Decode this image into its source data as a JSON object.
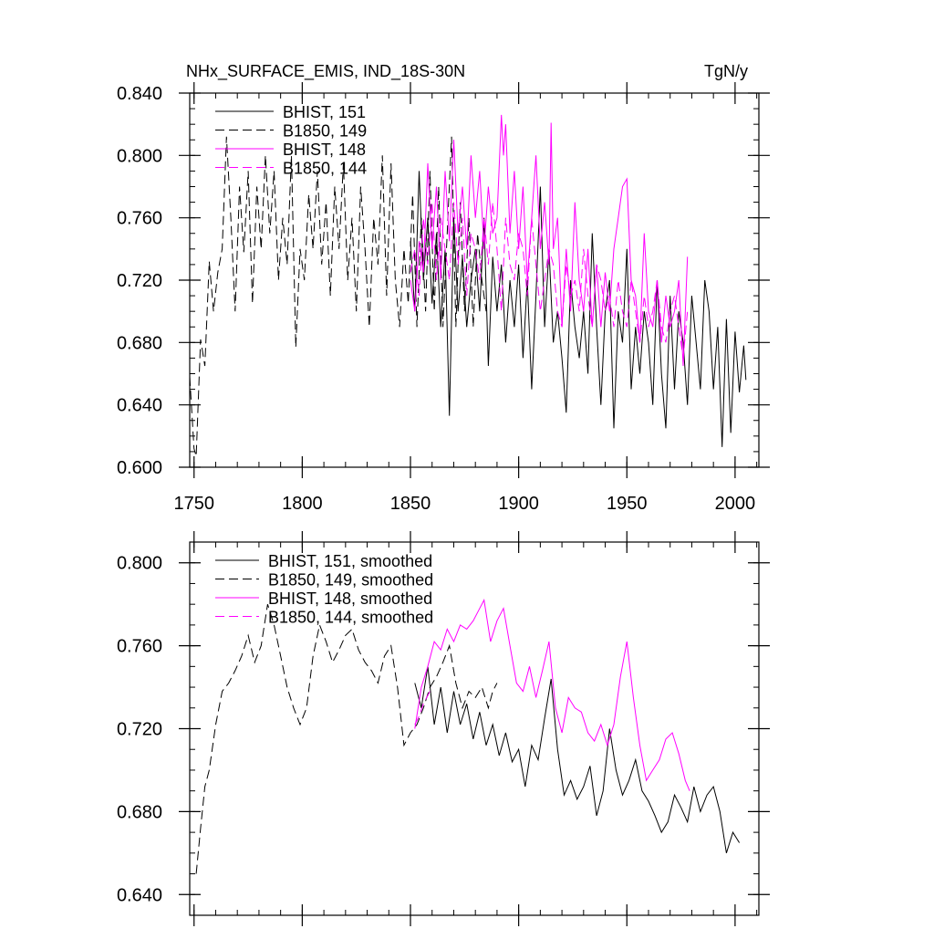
{
  "chart_data": [
    {
      "type": "line",
      "title": "NHx_SURFACE_EMIS, IND_18S-30N",
      "units": "TgN/y",
      "xlim": [
        1748,
        2011
      ],
      "ylim": [
        0.6,
        0.84
      ],
      "xticks": [
        1750,
        1800,
        1850,
        1900,
        1950,
        2000
      ],
      "xtick_labels": [
        "1750",
        "1800",
        "1850",
        "1900",
        "1950",
        "2000"
      ],
      "yticks": [
        0.6,
        0.64,
        0.68,
        0.72,
        0.76,
        0.8,
        0.84
      ],
      "ytick_labels": [
        "0.600",
        "0.640",
        "0.680",
        "0.720",
        "0.760",
        "0.800",
        "0.840"
      ],
      "grid": false,
      "legend_position": "top-left",
      "series": [
        {
          "name": "BHIST, 151",
          "color": "#000000",
          "dash": "solid",
          "x": [
            1850,
            1852,
            1854,
            1856,
            1858,
            1860,
            1862,
            1864,
            1866,
            1868,
            1870,
            1872,
            1874,
            1876,
            1878,
            1880,
            1882,
            1884,
            1886,
            1888,
            1890,
            1892,
            1894,
            1896,
            1898,
            1900,
            1902,
            1904,
            1906,
            1908,
            1910,
            1912,
            1914,
            1916,
            1918,
            1920,
            1922,
            1924,
            1926,
            1928,
            1930,
            1932,
            1934,
            1936,
            1938,
            1940,
            1942,
            1944,
            1946,
            1948,
            1950,
            1952,
            1954,
            1956,
            1958,
            1960,
            1962,
            1964,
            1966,
            1968,
            1970,
            1972,
            1974,
            1976,
            1978,
            1980,
            1982,
            1984,
            1986,
            1988,
            1990,
            1992,
            1994,
            1996,
            1998,
            2000,
            2002,
            2004,
            2005
          ],
          "y": [
            0.745,
            0.7,
            0.79,
            0.72,
            0.76,
            0.705,
            0.75,
            0.69,
            0.74,
            0.633,
            0.76,
            0.7,
            0.735,
            0.69,
            0.72,
            0.74,
            0.7,
            0.76,
            0.665,
            0.735,
            0.7,
            0.73,
            0.68,
            0.72,
            0.69,
            0.73,
            0.67,
            0.72,
            0.65,
            0.71,
            0.78,
            0.69,
            0.74,
            0.68,
            0.7,
            0.67,
            0.635,
            0.72,
            0.69,
            0.67,
            0.7,
            0.66,
            0.75,
            0.69,
            0.64,
            0.7,
            0.72,
            0.625,
            0.7,
            0.68,
            0.74,
            0.65,
            0.69,
            0.66,
            0.7,
            0.68,
            0.64,
            0.72,
            0.66,
            0.625,
            0.71,
            0.65,
            0.7,
            0.68,
            0.64,
            0.71,
            0.68,
            0.65,
            0.72,
            0.7,
            0.65,
            0.69,
            0.613,
            0.695,
            0.622,
            0.687,
            0.648,
            0.678,
            0.656
          ]
        },
        {
          "name": "B1850, 149",
          "color": "#000000",
          "dash": "dashed",
          "x": [
            1748,
            1750,
            1751,
            1753,
            1755,
            1757,
            1759,
            1761,
            1763,
            1765,
            1767,
            1769,
            1771,
            1773,
            1775,
            1777,
            1779,
            1781,
            1783,
            1785,
            1787,
            1789,
            1791,
            1793,
            1795,
            1797,
            1799,
            1801,
            1803,
            1805,
            1807,
            1809,
            1811,
            1813,
            1815,
            1817,
            1819,
            1821,
            1823,
            1825,
            1827,
            1829,
            1831,
            1833,
            1835,
            1837,
            1839,
            1841,
            1843,
            1845,
            1847,
            1849,
            1851,
            1853,
            1855,
            1857,
            1859,
            1861,
            1863,
            1865,
            1867,
            1869,
            1871,
            1873,
            1875,
            1877,
            1879,
            1881,
            1883,
            1885
          ],
          "y": [
            0.658,
            0.612,
            0.607,
            0.682,
            0.665,
            0.732,
            0.7,
            0.725,
            0.74,
            0.812,
            0.76,
            0.7,
            0.78,
            0.738,
            0.79,
            0.705,
            0.78,
            0.74,
            0.8,
            0.75,
            0.79,
            0.72,
            0.76,
            0.73,
            0.8,
            0.677,
            0.74,
            0.72,
            0.775,
            0.74,
            0.79,
            0.73,
            0.77,
            0.71,
            0.78,
            0.74,
            0.795,
            0.72,
            0.76,
            0.7,
            0.78,
            0.74,
            0.69,
            0.76,
            0.73,
            0.8,
            0.71,
            0.795,
            0.72,
            0.69,
            0.74,
            0.705,
            0.775,
            0.69,
            0.76,
            0.7,
            0.79,
            0.7,
            0.78,
            0.69,
            0.75,
            0.812,
            0.69,
            0.77,
            0.7,
            0.76,
            0.69,
            0.75,
            0.72,
            0.7
          ]
        },
        {
          "name": "BHIST, 148",
          "color": "#ff00ff",
          "dash": "solid",
          "x": [
            1850,
            1852,
            1854,
            1856,
            1858,
            1860,
            1862,
            1864,
            1866,
            1868,
            1870,
            1872,
            1874,
            1876,
            1878,
            1880,
            1882,
            1884,
            1886,
            1888,
            1890,
            1892,
            1893,
            1894,
            1896,
            1898,
            1900,
            1902,
            1904,
            1906,
            1908,
            1910,
            1912,
            1914,
            1915,
            1916,
            1918,
            1920,
            1922,
            1924,
            1926,
            1928,
            1930,
            1932,
            1934,
            1936,
            1938,
            1940,
            1942,
            1944,
            1946,
            1948,
            1950,
            1952,
            1954,
            1956,
            1958,
            1960,
            1962,
            1964,
            1966,
            1968,
            1970,
            1972,
            1974,
            1976,
            1978
          ],
          "y": [
            0.72,
            0.7,
            0.745,
            0.725,
            0.795,
            0.74,
            0.78,
            0.72,
            0.79,
            0.745,
            0.81,
            0.75,
            0.78,
            0.74,
            0.8,
            0.76,
            0.79,
            0.74,
            0.78,
            0.75,
            0.76,
            0.826,
            0.8,
            0.82,
            0.75,
            0.79,
            0.74,
            0.78,
            0.72,
            0.76,
            0.8,
            0.74,
            0.77,
            0.73,
            0.821,
            0.74,
            0.76,
            0.69,
            0.74,
            0.7,
            0.77,
            0.72,
            0.7,
            0.74,
            0.69,
            0.73,
            0.69,
            0.725,
            0.7,
            0.74,
            0.76,
            0.78,
            0.785,
            0.72,
            0.71,
            0.68,
            0.75,
            0.7,
            0.69,
            0.72,
            0.68,
            0.71,
            0.69,
            0.7,
            0.72,
            0.665,
            0.735
          ]
        },
        {
          "name": "B1850, 144",
          "color": "#ff00ff",
          "dash": "dashed",
          "x": [
            1850,
            1852,
            1854,
            1856,
            1858,
            1860,
            1862,
            1864,
            1866,
            1868,
            1870,
            1872,
            1874,
            1876,
            1878,
            1880,
            1882,
            1884,
            1886,
            1888,
            1890,
            1892,
            1894,
            1896,
            1898,
            1900,
            1902,
            1904,
            1906,
            1908,
            1910,
            1912,
            1914,
            1916,
            1918,
            1920,
            1922,
            1924,
            1926,
            1928,
            1930,
            1932,
            1934,
            1936,
            1938,
            1940,
            1942,
            1944,
            1946,
            1948,
            1950,
            1952,
            1954,
            1956,
            1958,
            1960,
            1962,
            1964,
            1966,
            1968,
            1970,
            1972,
            1974,
            1976,
            1978
          ],
          "y": [
            0.725,
            0.74,
            0.71,
            0.76,
            0.73,
            0.77,
            0.72,
            0.76,
            0.74,
            0.72,
            0.77,
            0.73,
            0.76,
            0.71,
            0.75,
            0.74,
            0.72,
            0.76,
            0.73,
            0.77,
            0.74,
            0.7,
            0.76,
            0.73,
            0.72,
            0.75,
            0.74,
            0.71,
            0.76,
            0.73,
            0.7,
            0.72,
            0.74,
            0.73,
            0.7,
            0.69,
            0.73,
            0.71,
            0.72,
            0.7,
            0.74,
            0.71,
            0.69,
            0.73,
            0.72,
            0.7,
            0.71,
            0.69,
            0.72,
            0.7,
            0.69,
            0.72,
            0.7,
            0.68,
            0.71,
            0.69,
            0.7,
            0.72,
            0.69,
            0.68,
            0.7,
            0.71,
            0.69,
            0.67,
            0.7
          ]
        }
      ]
    },
    {
      "type": "line",
      "title": "",
      "xlim": [
        1748,
        2011
      ],
      "ylim": [
        0.63,
        0.81
      ],
      "xticks": [
        1750,
        1800,
        1850,
        1900,
        1950,
        2000
      ],
      "yticks": [
        0.64,
        0.68,
        0.72,
        0.76,
        0.8
      ],
      "ytick_labels": [
        "0.640",
        "0.680",
        "0.720",
        "0.760",
        "0.800"
      ],
      "grid": false,
      "legend_position": "top-left",
      "series": [
        {
          "name": "BHIST, 151, smoothed",
          "color": "#000000",
          "dash": "solid",
          "x": [
            1852,
            1855,
            1858,
            1861,
            1864,
            1867,
            1870,
            1873,
            1876,
            1879,
            1882,
            1885,
            1888,
            1891,
            1894,
            1897,
            1900,
            1903,
            1906,
            1909,
            1912,
            1915,
            1918,
            1921,
            1924,
            1927,
            1930,
            1933,
            1936,
            1939,
            1942,
            1945,
            1948,
            1951,
            1954,
            1957,
            1960,
            1963,
            1966,
            1969,
            1972,
            1975,
            1978,
            1981,
            1984,
            1987,
            1990,
            1993,
            1996,
            1999,
            2002
          ],
          "y": [
            0.742,
            0.73,
            0.75,
            0.722,
            0.74,
            0.718,
            0.738,
            0.722,
            0.732,
            0.715,
            0.728,
            0.712,
            0.722,
            0.707,
            0.718,
            0.704,
            0.71,
            0.692,
            0.712,
            0.705,
            0.725,
            0.744,
            0.71,
            0.688,
            0.695,
            0.686,
            0.692,
            0.702,
            0.678,
            0.69,
            0.72,
            0.7,
            0.688,
            0.695,
            0.705,
            0.69,
            0.685,
            0.678,
            0.67,
            0.675,
            0.688,
            0.682,
            0.675,
            0.692,
            0.68,
            0.688,
            0.692,
            0.68,
            0.66,
            0.67,
            0.665
          ]
        },
        {
          "name": "B1850, 149, smoothed",
          "color": "#000000",
          "dash": "dashed",
          "x": [
            1751,
            1753,
            1755,
            1757,
            1760,
            1763,
            1766,
            1769,
            1772,
            1775,
            1778,
            1781,
            1784,
            1787,
            1790,
            1793,
            1796,
            1799,
            1802,
            1805,
            1808,
            1811,
            1814,
            1817,
            1820,
            1823,
            1826,
            1829,
            1832,
            1835,
            1838,
            1841,
            1844,
            1847,
            1850,
            1853,
            1856,
            1859,
            1862,
            1865,
            1868,
            1871,
            1874,
            1877,
            1880,
            1883,
            1886,
            1888,
            1890
          ],
          "y": [
            0.65,
            0.672,
            0.692,
            0.7,
            0.722,
            0.738,
            0.742,
            0.748,
            0.755,
            0.765,
            0.752,
            0.76,
            0.78,
            0.77,
            0.755,
            0.74,
            0.73,
            0.722,
            0.73,
            0.755,
            0.77,
            0.762,
            0.752,
            0.758,
            0.765,
            0.768,
            0.758,
            0.752,
            0.748,
            0.742,
            0.755,
            0.76,
            0.74,
            0.712,
            0.718,
            0.722,
            0.73,
            0.74,
            0.745,
            0.752,
            0.76,
            0.742,
            0.73,
            0.738,
            0.735,
            0.74,
            0.73,
            0.738,
            0.742
          ]
        },
        {
          "name": "BHIST, 148, smoothed",
          "color": "#ff00ff",
          "dash": "solid",
          "x": [
            1852,
            1855,
            1858,
            1861,
            1864,
            1867,
            1870,
            1873,
            1876,
            1879,
            1882,
            1884,
            1887,
            1890,
            1893,
            1896,
            1899,
            1902,
            1905,
            1908,
            1911,
            1914,
            1917,
            1920,
            1923,
            1926,
            1929,
            1932,
            1935,
            1938,
            1941,
            1944,
            1947,
            1950,
            1953,
            1956,
            1959,
            1962,
            1965,
            1968,
            1971,
            1974,
            1977,
            1979
          ],
          "y": [
            0.72,
            0.74,
            0.75,
            0.762,
            0.758,
            0.768,
            0.762,
            0.77,
            0.768,
            0.772,
            0.778,
            0.782,
            0.762,
            0.772,
            0.778,
            0.76,
            0.742,
            0.738,
            0.75,
            0.735,
            0.748,
            0.762,
            0.73,
            0.718,
            0.735,
            0.73,
            0.728,
            0.718,
            0.714,
            0.722,
            0.712,
            0.722,
            0.745,
            0.762,
            0.735,
            0.712,
            0.695,
            0.7,
            0.705,
            0.715,
            0.718,
            0.708,
            0.695,
            0.69
          ]
        },
        {
          "name": "B1850, 144, smoothed",
          "color": "#ff00ff",
          "dash": "dashed",
          "x": [
            1852,
            1854,
            1856,
            1858,
            1860
          ],
          "y": [
            0.722,
            0.726,
            0.732,
            0.736,
            0.74
          ]
        }
      ]
    }
  ]
}
